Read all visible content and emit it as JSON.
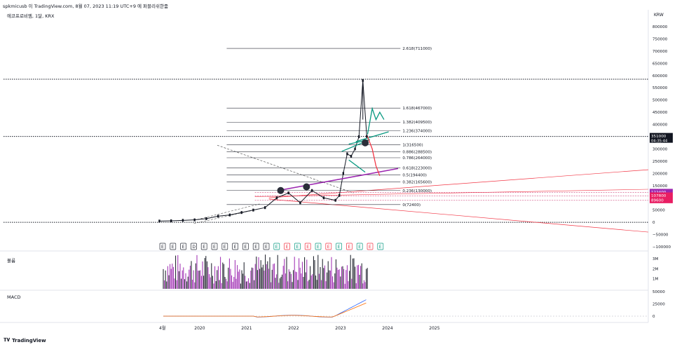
{
  "header": {
    "publisher": "spkmicusb 이 TradingView.com, 8월 07, 2023 11:19 UTC+9 에 퍼블리쉬한줌",
    "symbol": "에코프로비엠, 1달, KRX",
    "currency": "KRW",
    "volume_label": "볼륨",
    "macd_label": "MACD",
    "brand": "TradingView"
  },
  "colors": {
    "candle": "#131722",
    "fib": "#2a2e39",
    "purple": "#9c27b0",
    "teal": "#089981",
    "red": "#f23645",
    "dashed": "#555555",
    "price_tag": "#131722"
  },
  "chart_data": [
    {
      "type": "line",
      "title": "",
      "ylabel": "",
      "xlabel": "",
      "ylim": [
        -100000,
        850000
      ],
      "y_ticks": [
        800000,
        750000,
        700000,
        650000,
        600000,
        550000,
        500000,
        450000,
        400000,
        350000,
        300000,
        250000,
        200000,
        150000,
        100000,
        50000,
        0,
        -50000,
        -100000
      ],
      "y_tick_labels": [
        "800000",
        "750000",
        "700000",
        "650000",
        "600000",
        "550000",
        "500000",
        "450000",
        "400000",
        "350000",
        "300000",
        "250000",
        "200000",
        "150000",
        "100000",
        "50000",
        "0",
        "−50000",
        "−100000"
      ],
      "x_ticks": [
        "4월",
        "2020",
        "2021",
        "2022",
        "2023",
        "2024",
        "2025"
      ],
      "grid": false,
      "series": [
        {
          "values_x": [
            "2019-03",
            "2019-06",
            "2019-09",
            "2019-12",
            "2020-03",
            "2020-06",
            "2020-09",
            "2020-12",
            "2021-03",
            "2021-06",
            "2021-09",
            "2021-12",
            "2022-03",
            "2022-06",
            "2022-09",
            "2022-12",
            "2023-01",
            "2023-02",
            "2023-03",
            "2023-04",
            "2023-05",
            "2023-06",
            "2023-07",
            "2023-08"
          ],
          "values": [
            5000,
            6000,
            8000,
            10000,
            15000,
            25000,
            30000,
            40000,
            50000,
            60000,
            100000,
            120000,
            80000,
            130000,
            100000,
            90000,
            110000,
            200000,
            280000,
            270000,
            300000,
            350000,
            580000,
            351000
          ]
        }
      ],
      "fibonacci": [
        {
          "label": "2.618(711000)",
          "value": 711000
        },
        {
          "label": "1.618(467000)",
          "value": 467000
        },
        {
          "label": "1.382(409500)",
          "value": 409500
        },
        {
          "label": "1.236(374000)",
          "value": 374000
        },
        {
          "label": "1(316500)",
          "value": 316500
        },
        {
          "label": "0.886(288500)",
          "value": 288500
        },
        {
          "label": "0.786(264000)",
          "value": 264000
        },
        {
          "label": "0.618(223000)",
          "value": 223000
        },
        {
          "label": "0.5(194400)",
          "value": 194400
        },
        {
          "label": "0.382(165600)",
          "value": 165600
        },
        {
          "label": "0.236(130000)",
          "value": 130000
        },
        {
          "label": "0(72400)",
          "value": 72400
        }
      ],
      "price_tags": [
        {
          "label": "351000",
          "sub": "04:35:44",
          "value": 351000
        },
        {
          "label": "122400",
          "value": 122400
        },
        {
          "label": "107800",
          "value": 107800
        },
        {
          "label": "89600",
          "value": 89600
        }
      ],
      "dotted_levels": [
        585000,
        351000,
        0
      ]
    },
    {
      "type": "bar",
      "title": "",
      "ylabel": "",
      "y_tick_labels": [
        "3M",
        "2M",
        "1M"
      ],
      "y_ticks": [
        3000000,
        2000000,
        1000000
      ]
    },
    {
      "type": "line",
      "title": "",
      "ylabel": "",
      "y_tick_labels": [
        "50000",
        "25000",
        "0"
      ],
      "y_ticks": [
        50000,
        25000,
        0
      ]
    }
  ],
  "event_markers": [
    "E",
    "E",
    "E",
    "D",
    "E",
    "E",
    "E",
    "E",
    "E",
    "E",
    "E",
    "E",
    "E",
    "E",
    "E",
    "E",
    "E",
    "E",
    "E",
    "E",
    "E",
    "E"
  ]
}
